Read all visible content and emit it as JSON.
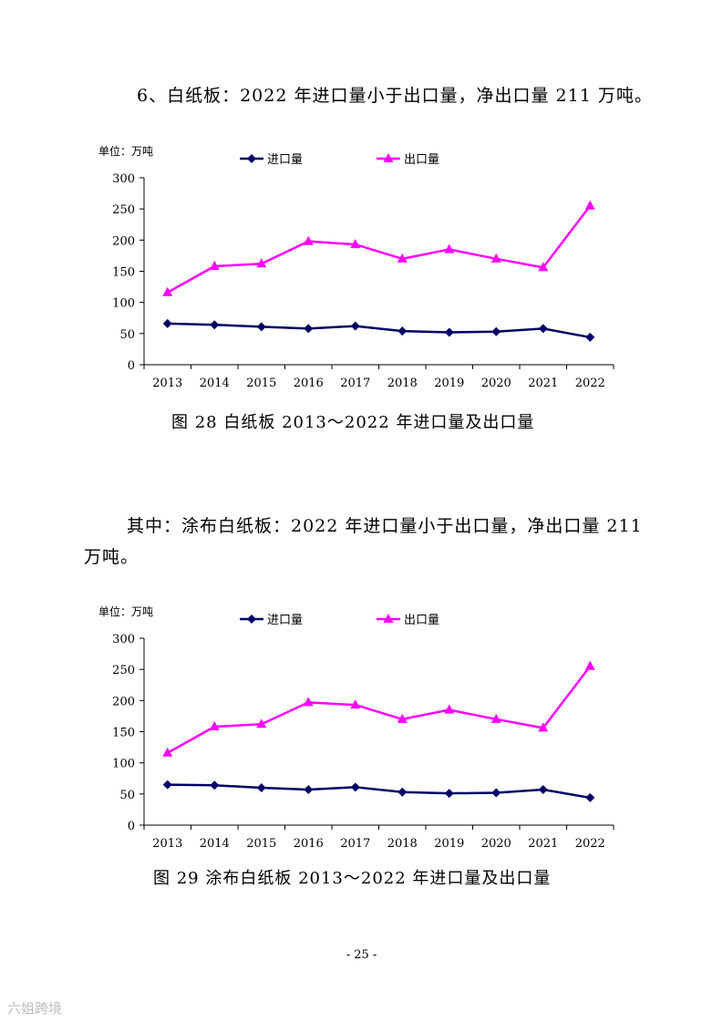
{
  "paragraph1": "6、白纸板：2022 年进口量小于出口量，净出口量 211 万吨。",
  "paragraph2": "其中：涂布白纸板：2022 年进口量小于出口量，净出口量 211 万吨。",
  "caption1": "图 28   白纸板 2013～2022 年进口量及出口量",
  "caption2": "图 29   涂布白纸板 2013～2022 年进口量及出口量",
  "page_number": "- 25 -",
  "watermark": "六姐跨境",
  "colors": {
    "import": "#000066",
    "export": "#ff00ff"
  },
  "chart_data": [
    {
      "type": "line",
      "title": "",
      "unit_label": "单位：万吨",
      "xlabel": "",
      "ylabel": "",
      "categories": [
        "2013",
        "2014",
        "2015",
        "2016",
        "2017",
        "2018",
        "2019",
        "2020",
        "2021",
        "2022"
      ],
      "yticks": [
        "0",
        "50",
        "100",
        "150",
        "200",
        "250",
        "300"
      ],
      "ylim": [
        0,
        300
      ],
      "series": [
        {
          "name": "进口量",
          "marker": "diamond",
          "values": [
            66,
            64,
            61,
            58,
            62,
            54,
            52,
            53,
            58,
            44
          ]
        },
        {
          "name": "出口量",
          "marker": "triangle",
          "values": [
            116,
            158,
            162,
            198,
            193,
            170,
            185,
            170,
            156,
            255
          ]
        }
      ]
    },
    {
      "type": "line",
      "title": "",
      "unit_label": "单位：万吨",
      "xlabel": "",
      "ylabel": "",
      "categories": [
        "2013",
        "2014",
        "2015",
        "2016",
        "2017",
        "2018",
        "2019",
        "2020",
        "2021",
        "2022"
      ],
      "yticks": [
        "0",
        "50",
        "100",
        "150",
        "200",
        "250",
        "300"
      ],
      "ylim": [
        0,
        300
      ],
      "series": [
        {
          "name": "进口量",
          "marker": "diamond",
          "values": [
            65,
            64,
            60,
            57,
            61,
            53,
            51,
            52,
            57,
            44
          ]
        },
        {
          "name": "出口量",
          "marker": "triangle",
          "values": [
            116,
            158,
            162,
            197,
            193,
            170,
            185,
            170,
            156,
            255
          ]
        }
      ]
    }
  ]
}
